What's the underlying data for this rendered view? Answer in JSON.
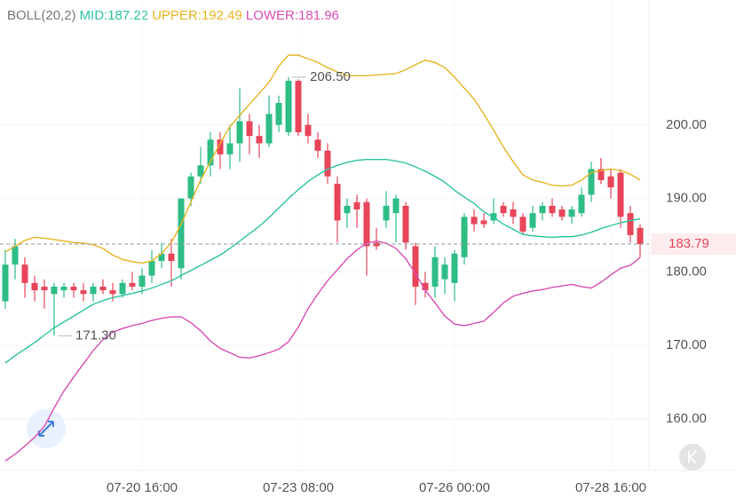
{
  "chart_data": {
    "type": "candlestick",
    "indicator": "BOLL(20,2)",
    "categories": [
      null,
      null,
      null,
      null,
      null,
      null,
      null,
      null,
      null,
      null,
      null,
      null,
      null,
      null,
      "07-20 16:00",
      null,
      null,
      null,
      null,
      null,
      null,
      null,
      null,
      null,
      null,
      null,
      null,
      null,
      null,
      null,
      "07-23 08:00",
      null,
      null,
      null,
      null,
      null,
      null,
      null,
      null,
      null,
      null,
      null,
      null,
      null,
      null,
      null,
      "07-26 00:00",
      null,
      null,
      null,
      null,
      null,
      null,
      null,
      null,
      null,
      null,
      null,
      null,
      null,
      null,
      null,
      "07-28 16:00",
      null,
      null,
      null
    ],
    "open": [
      176,
      181,
      181,
      178.5,
      178,
      177,
      177.5,
      178,
      177.5,
      177,
      178,
      177.5,
      177,
      178.5,
      178,
      179.5,
      181.5,
      182.5,
      180.5,
      190,
      193,
      194.5,
      198,
      196,
      197.5,
      200.5,
      198.5,
      197.5,
      200,
      199,
      206,
      200,
      198,
      196.5,
      192,
      188,
      189.5,
      189.5,
      184,
      187,
      188,
      189,
      183.5,
      178.5,
      178,
      179,
      178.5,
      182,
      187.5,
      187,
      187,
      189,
      188.5,
      187.5,
      186,
      188,
      189,
      188.5,
      187.5,
      188,
      190.5,
      194,
      193,
      193.5,
      188,
      186
    ],
    "high": [
      183,
      184.5,
      182,
      179.5,
      179,
      178.5,
      178.5,
      178.5,
      178.5,
      178.5,
      179,
      178.5,
      179,
      180,
      180.5,
      183,
      184,
      184.5,
      190,
      193.5,
      197,
      199,
      199,
      200,
      205,
      201.5,
      200,
      204,
      204,
      206.5,
      206.2,
      201.5,
      199,
      197.5,
      193,
      190,
      190.5,
      190,
      186,
      191,
      190.5,
      189.5,
      184,
      180,
      183.5,
      182,
      183,
      188,
      188.5,
      188,
      190,
      189.5,
      189.5,
      188,
      189,
      189.5,
      190,
      189,
      189,
      191.5,
      195,
      195.5,
      194,
      194,
      189,
      186.5
    ],
    "low": [
      175,
      179,
      176.5,
      176,
      175,
      171.3,
      176.5,
      176.5,
      176,
      176,
      177,
      176,
      176.5,
      177.5,
      177,
      178.5,
      180.5,
      178,
      179,
      189,
      192,
      193,
      194,
      194,
      195,
      196,
      195.5,
      197,
      199,
      198.5,
      198.5,
      197.5,
      195.5,
      192,
      184,
      186,
      186,
      179.5,
      183,
      186,
      184,
      183,
      175.5,
      176.5,
      176.5,
      177,
      176,
      181,
      185.5,
      186,
      186.5,
      187.5,
      186.5,
      185,
      185.5,
      187,
      187.5,
      187,
      186.5,
      187.5,
      189.5,
      192,
      190,
      186,
      184,
      182
    ],
    "close": [
      181,
      183.5,
      178.5,
      177.5,
      177.5,
      178,
      178,
      177.5,
      177,
      178,
      177.5,
      177,
      178.5,
      178,
      179.5,
      181.5,
      182.5,
      181.5,
      190,
      193,
      194.5,
      198,
      196,
      197.5,
      200.5,
      198.5,
      197.5,
      201.5,
      203,
      206,
      199,
      198.5,
      196.5,
      193,
      187,
      189,
      188.5,
      183.5,
      183.5,
      189,
      190,
      184,
      178,
      177.5,
      182,
      181,
      182.5,
      187.5,
      186.5,
      186.5,
      188,
      188,
      187.5,
      185.5,
      188,
      189,
      188,
      187.5,
      188.5,
      190.5,
      194,
      192.5,
      191.5,
      187.5,
      185,
      183.79
    ],
    "up_color": "#2dbd85",
    "down_color": "#e8455a",
    "series": [
      {
        "name": "MID:187.22",
        "color": "#2ec4a0",
        "values": [
          167.6,
          168.6,
          169.5,
          170.4,
          171.4,
          172.4,
          173.2,
          174.0,
          174.8,
          175.6,
          176.1,
          176.5,
          176.8,
          177.1,
          177.4,
          177.8,
          178.3,
          178.8,
          179.5,
          180.2,
          180.9,
          181.6,
          182.3,
          183.2,
          184.2,
          185.2,
          186.2,
          187.4,
          188.7,
          190.0,
          191.2,
          192.3,
          193.2,
          194.0,
          194.5,
          194.9,
          195.2,
          195.3,
          195.3,
          195.3,
          195.1,
          194.8,
          194.3,
          193.7,
          193.0,
          192.2,
          191.1,
          190.2,
          189.3,
          188.2,
          187.4,
          186.5,
          185.8,
          185.1,
          184.9,
          184.8,
          184.7,
          184.8,
          184.8,
          185.0,
          185.4,
          185.9,
          186.3,
          186.7,
          187.0,
          187.22
        ]
      },
      {
        "name": "UPPER:192.49",
        "color": "#e6b422",
        "values": [
          182.7,
          183.5,
          184.3,
          184.7,
          184.6,
          184.4,
          184.2,
          184.0,
          183.9,
          183.7,
          183.2,
          182.3,
          181.7,
          181.4,
          181.2,
          181.5,
          182.5,
          184.0,
          186.5,
          189.5,
          192.5,
          195.0,
          197.5,
          199.8,
          201.3,
          202.8,
          204.3,
          205.8,
          208.0,
          209.5,
          209.5,
          209.0,
          208.5,
          207.8,
          207.2,
          206.7,
          206.7,
          206.7,
          206.8,
          206.9,
          207.0,
          207.5,
          208.2,
          208.8,
          208.5,
          207.8,
          206.5,
          205.0,
          203.5,
          201.5,
          199.3,
          197.0,
          195.0,
          193.2,
          192.5,
          192.2,
          191.8,
          191.7,
          191.8,
          192.5,
          193.5,
          193.8,
          194.0,
          193.8,
          193.3,
          192.49
        ]
      },
      {
        "name": "LOWER:181.96",
        "color": "#d84fb3",
        "values": [
          154.3,
          155.2,
          156.3,
          157.5,
          159.0,
          161.5,
          163.8,
          165.7,
          167.5,
          169.3,
          170.8,
          171.8,
          172.3,
          172.7,
          173.0,
          173.4,
          173.7,
          173.9,
          173.9,
          173.1,
          172.0,
          170.6,
          169.6,
          169.0,
          168.4,
          168.3,
          168.6,
          169.0,
          169.5,
          170.5,
          172.5,
          175.0,
          177.0,
          178.8,
          180.3,
          181.8,
          183.0,
          183.9,
          184.2,
          183.9,
          183.2,
          181.8,
          179.8,
          177.5,
          175.8,
          174.0,
          172.9,
          172.7,
          173.0,
          173.3,
          174.5,
          175.8,
          176.7,
          177.1,
          177.4,
          177.6,
          177.9,
          178.1,
          178.3,
          178.0,
          177.8,
          178.6,
          179.6,
          180.5,
          180.9,
          181.96
        ]
      }
    ],
    "annotations": [
      {
        "value": 206.5,
        "label": "206.50"
      },
      {
        "value": 171.3,
        "label": "171.30"
      }
    ],
    "last_price": {
      "value": 183.79,
      "label": "183.79"
    },
    "ylim": [
      153,
      217
    ],
    "yticks": [
      {
        "value": 160,
        "label": "160.00"
      },
      {
        "value": 170,
        "label": "170.00"
      },
      {
        "value": 180,
        "label": "180.00"
      },
      {
        "value": 190,
        "label": "190.00"
      },
      {
        "value": 200,
        "label": "200.00"
      }
    ],
    "grid": true
  }
}
